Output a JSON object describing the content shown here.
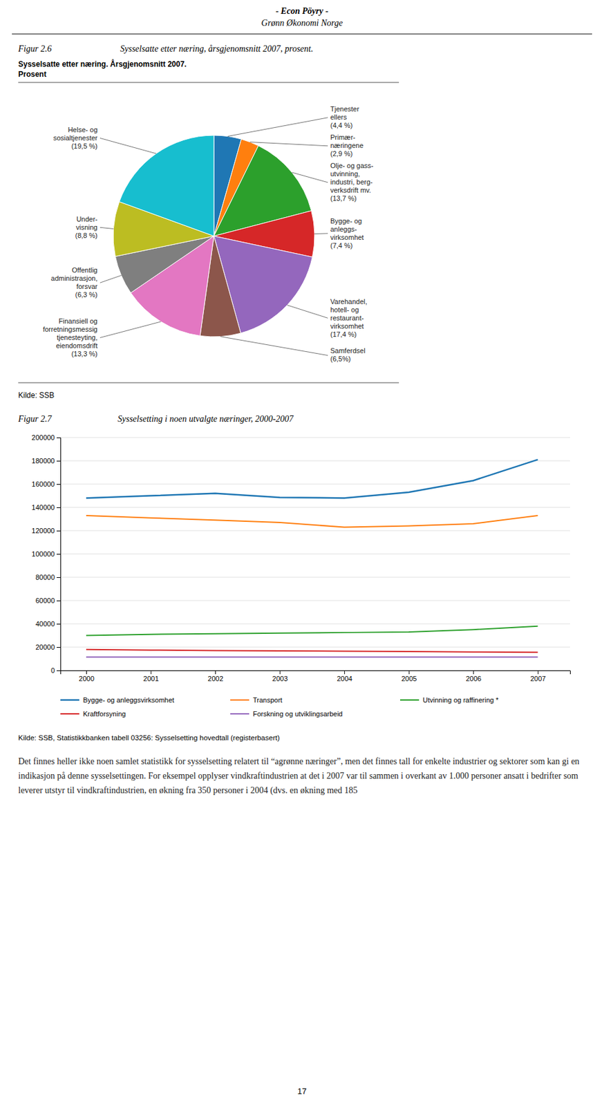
{
  "page": {
    "header": [
      "- Econ Pöyry -",
      "Grønn Økonomi Norge"
    ],
    "body_text": "Det finnes heller ikke noen samlet statistikk for sysselsetting relatert til “agrønne næringer”, men det finnes tall for enkelte industrier og sektorer som kan gi en indikasjon på denne sysselsettingen. For eksempel opplyser vindkraftindustrien at det i 2007 var til sammen i overkant av 1.000 personer ansatt i bedrifter som leverer utstyr til vindkraftindustrien, en økning fra 350 personer i 2004 (dvs. en økning med 185",
    "page_number": "17"
  },
  "chart_data": [
    {
      "type": "pie",
      "title": "Sysselsatte etter næring. Årsgjenomsnitt 2007.",
      "subtitle": "Prosent",
      "annotations": [
        "Figur 2.6",
        "Sysselsatte etter næring, årsgjenomsnitt 2007, prosent.",
        "Kilde: SSB"
      ],
      "categories": [
        "Tjenester\nellers\n(4,4 %)",
        "Primær-\nnæringene\n(2,9 %)",
        "Olje- og gass-\nutvinning,\nindustri, berg-\nverksdrift mv.\n(13,7 %)",
        "Bygge- og\nanleggs-\nvirksomhet\n(7,4 %)",
        "Varehandel,\nhotell- og\nrestaurant-\nvirksomhet\n(17,4 %)",
        "Samferdsel\n(6,5%)",
        "Finansiell og\nforretnings­messig\ntjenesteyting,\neiendomsdrift\n(13,3 %)",
        "Offentlig\nadministrasjon,\nforsvar\n(6,3 %)",
        "Under-\nvisning\n(8,8 %)",
        "Helse- og\nsosialtjenester\n(19,5 %)"
      ],
      "values": [
        4.4,
        2.9,
        13.7,
        7.4,
        17.4,
        6.5,
        13.3,
        6.3,
        8.8,
        19.5
      ]
    },
    {
      "type": "line",
      "title": "Sysselsetting i noen utvalgte næringer, 2000-2007",
      "annotations": [
        "Figur 2.7",
        "Kilde: SSB, Statistikkbanken tabell 03256: Sysselsetting hovedtall (registerbasert)"
      ],
      "x": [
        2000,
        2001,
        2002,
        2003,
        2004,
        2005,
        2006,
        2007
      ],
      "xlim": [
        1999.6,
        2007.5
      ],
      "xticks": [
        2000,
        2001,
        2002,
        2003,
        2004,
        2005,
        2006,
        2007
      ],
      "ylim": [
        0,
        200000
      ],
      "yticks": [
        0,
        20000,
        40000,
        60000,
        80000,
        100000,
        120000,
        140000,
        160000,
        180000,
        200000
      ],
      "grid": true,
      "legend": "bottom",
      "series": [
        {
          "name": "Bygge- og anleggsvirksomhet",
          "values": [
            148000,
            150000,
            152000,
            148500,
            148000,
            153000,
            163000,
            181000
          ]
        },
        {
          "name": "Transport",
          "values": [
            133000,
            131000,
            129000,
            127000,
            123000,
            124000,
            126000,
            133000
          ]
        },
        {
          "name": "Utvinning og raffinering *",
          "values": [
            30000,
            31000,
            31500,
            32000,
            32500,
            33000,
            35000,
            38000
          ]
        },
        {
          "name": "Kraftforsyning",
          "values": [
            18000,
            17500,
            17000,
            16800,
            16500,
            16200,
            15800,
            15500
          ]
        },
        {
          "name": "Forskning og utviklingsarbeid",
          "values": [
            11500,
            11500,
            11500,
            11500,
            11500,
            11500,
            11500,
            11500
          ]
        }
      ]
    }
  ]
}
